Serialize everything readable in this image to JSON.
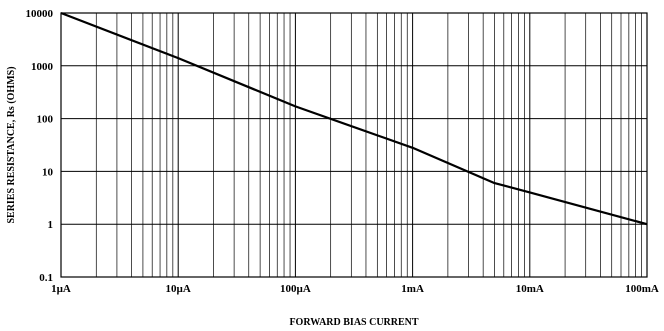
{
  "chart_data": {
    "type": "line",
    "x_scale": "log",
    "y_scale": "log",
    "xlim": [
      1e-06,
      0.1
    ],
    "ylim": [
      0.1,
      10000
    ],
    "grid": true,
    "xlabel": "FORWARD BIAS CURRENT",
    "ylabel": "SERIES RESISTANCE, Rs (OHMS)",
    "x_ticks": [
      {
        "value": 1e-06,
        "label": "1µA"
      },
      {
        "value": 1e-05,
        "label": "10µA"
      },
      {
        "value": 0.0001,
        "label": "100µA"
      },
      {
        "value": 0.001,
        "label": "1mA"
      },
      {
        "value": 0.01,
        "label": "10mA"
      },
      {
        "value": 0.1,
        "label": "100mA"
      }
    ],
    "y_ticks": [
      {
        "value": 0.1,
        "label": "0.1"
      },
      {
        "value": 1,
        "label": "1"
      },
      {
        "value": 10,
        "label": "10"
      },
      {
        "value": 100,
        "label": "100"
      },
      {
        "value": 1000,
        "label": "1000"
      },
      {
        "value": 10000,
        "label": "10000"
      }
    ],
    "series": [
      {
        "color": "#000000",
        "points": [
          {
            "x": 1e-06,
            "y": 10000
          },
          {
            "x": 1e-05,
            "y": 1400
          },
          {
            "x": 0.0001,
            "y": 170
          },
          {
            "x": 0.001,
            "y": 28
          },
          {
            "x": 0.005,
            "y": 6
          },
          {
            "x": 0.01,
            "y": 4
          },
          {
            "x": 0.1,
            "y": 1
          }
        ]
      }
    ]
  }
}
